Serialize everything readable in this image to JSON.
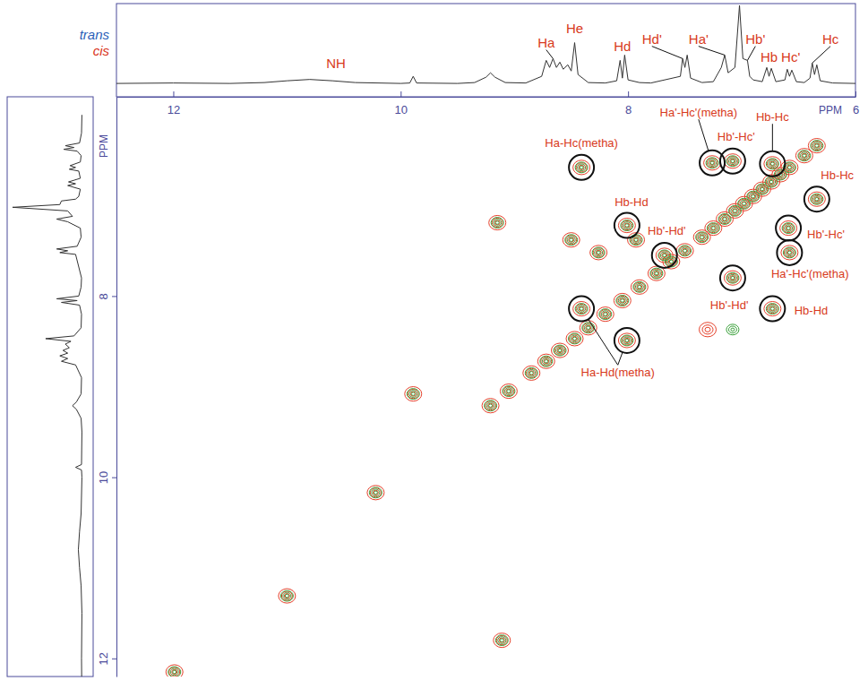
{
  "chart_data": {
    "type": "contour",
    "xlabel": "PPM",
    "ylabel": "PPM",
    "xlim": [
      12.5,
      6
    ],
    "xticks": [
      12,
      10,
      8,
      6
    ],
    "ylim": [
      5.8,
      12.2
    ],
    "yticks": [
      8,
      10,
      12
    ],
    "legend": "upper left",
    "series": [
      {
        "name": "trans",
        "color": "#3aa13a",
        "x": [
          6.34,
          6.45,
          6.58,
          6.66,
          6.74,
          6.82,
          6.9,
          6.98,
          7.06,
          7.15,
          7.25,
          7.35,
          7.5,
          7.62,
          7.75,
          7.9,
          8.05,
          8.2,
          8.35,
          8.47,
          8.6,
          8.72,
          8.85,
          9.05,
          9.21,
          8.41,
          8.01,
          7.68,
          7.26,
          7.08,
          6.73,
          6.34,
          6.59,
          6.58,
          7.08,
          6.73,
          8.41,
          8.01,
          9.15,
          8.5,
          8.26,
          7.93,
          9.89,
          10.22,
          11.0,
          11.99,
          9.11,
          7.08
        ],
        "values": [
          6.34,
          6.45,
          6.58,
          6.66,
          6.74,
          6.82,
          6.9,
          6.98,
          7.06,
          7.15,
          7.25,
          7.35,
          7.5,
          7.62,
          7.75,
          7.9,
          8.05,
          8.2,
          8.35,
          8.47,
          8.6,
          8.72,
          8.85,
          9.05,
          9.21,
          6.58,
          7.22,
          7.55,
          6.53,
          6.51,
          6.54,
          6.93,
          7.25,
          7.52,
          7.8,
          8.14,
          8.14,
          8.49,
          7.19,
          7.38,
          7.52,
          7.38,
          9.08,
          10.17,
          11.31,
          12.15,
          11.8,
          8.37
        ]
      },
      {
        "name": "cis",
        "color": "#e5402a",
        "x": [
          6.34,
          6.45,
          6.58,
          6.66,
          6.74,
          6.82,
          6.9,
          6.98,
          7.06,
          7.15,
          7.25,
          7.35,
          7.5,
          7.62,
          7.75,
          7.9,
          8.05,
          8.2,
          8.35,
          8.47,
          8.6,
          8.72,
          8.85,
          9.05,
          9.21,
          8.41,
          8.01,
          7.68,
          7.26,
          7.08,
          6.73,
          6.34,
          6.59,
          6.58,
          7.08,
          6.73,
          8.41,
          8.01,
          9.15,
          8.5,
          8.26,
          7.93,
          9.89,
          10.22,
          11.0,
          11.99,
          9.11,
          7.3
        ],
        "values": [
          6.34,
          6.45,
          6.58,
          6.66,
          6.74,
          6.82,
          6.9,
          6.98,
          7.06,
          7.15,
          7.25,
          7.35,
          7.5,
          7.62,
          7.75,
          7.9,
          8.05,
          8.2,
          8.35,
          8.47,
          8.6,
          8.72,
          8.85,
          9.05,
          9.21,
          6.58,
          7.22,
          7.55,
          6.53,
          6.51,
          6.54,
          6.93,
          7.25,
          7.52,
          7.8,
          8.14,
          8.14,
          8.49,
          7.19,
          7.38,
          7.52,
          7.38,
          9.08,
          10.17,
          11.31,
          12.15,
          11.8,
          8.37
        ]
      }
    ],
    "annotations": [
      {
        "text": "Ha-Hc(metha)",
        "xy": [
          [
            8.41,
            6.58
          ]
        ],
        "xytext": [
          8.41,
          6.31
        ]
      },
      {
        "text": "Hb-Hd",
        "xy": [
          [
            8.01,
            7.22
          ]
        ],
        "xytext": [
          7.97,
          6.96
        ]
      },
      {
        "text": "Hb'-Hd'",
        "xy": [
          [
            7.68,
            7.55
          ]
        ],
        "xytext": [
          7.66,
          7.28
        ]
      },
      {
        "text": "Ha'-Hc'(metha)",
        "xy": [
          [
            7.26,
            6.53
          ]
        ],
        "xytext": [
          7.38,
          5.97
        ]
      },
      {
        "text": "Hb'-Hc'",
        "xy": [
          [
            7.08,
            6.51
          ]
        ],
        "xytext": [
          7.05,
          6.24
        ]
      },
      {
        "text": "Hb-Hc",
        "xy": [
          [
            6.73,
            6.54
          ]
        ],
        "xytext": [
          6.73,
          6.02
        ]
      },
      {
        "text": "Hb-Hc",
        "xy": [
          [
            6.34,
            6.93
          ]
        ],
        "xytext": [
          6.16,
          6.67
        ]
      },
      {
        "text": "Hb'-Hc'",
        "xy": [
          [
            6.59,
            7.25
          ]
        ],
        "xytext": [
          6.26,
          7.32
        ]
      },
      {
        "text": "Ha'-Hc'(metha)",
        "xy": [
          [
            6.58,
            7.52
          ]
        ],
        "xytext": [
          6.4,
          7.75
        ]
      },
      {
        "text": "Hb'-Hd'",
        "xy": [
          [
            7.08,
            7.8
          ]
        ],
        "xytext": [
          7.11,
          8.1
        ]
      },
      {
        "text": "Hb-Hd",
        "xy": [
          [
            6.73,
            8.14
          ]
        ],
        "xytext": [
          6.39,
          8.16
        ]
      },
      {
        "text": "Ha-Hd(metha)",
        "xy": [
          [
            8.41,
            8.14
          ],
          [
            8.01,
            8.49
          ]
        ],
        "xytext": [
          8.09,
          8.84
        ]
      }
    ],
    "spectrum": {
      "color": "#333333",
      "ylim": [
        0,
        100
      ],
      "x": [
        12.5,
        12.0,
        11.5,
        11.2,
        11.0,
        10.8,
        10.6,
        10.4,
        10.0,
        9.92,
        9.89,
        9.86,
        9.5,
        9.35,
        9.25,
        9.21,
        9.17,
        9.08,
        8.9,
        8.76,
        8.72,
        8.69,
        8.66,
        8.63,
        8.6,
        8.57,
        8.53,
        8.5,
        8.47,
        8.44,
        8.35,
        8.2,
        8.1,
        8.07,
        8.05,
        8.03,
        8.0,
        7.9,
        7.8,
        7.54,
        7.52,
        7.5,
        7.48,
        7.45,
        7.35,
        7.25,
        7.18,
        7.15,
        7.12,
        7.06,
        7.02,
        6.99,
        6.95,
        6.93,
        6.9,
        6.82,
        6.78,
        6.76,
        6.74,
        6.7,
        6.62,
        6.6,
        6.58,
        6.56,
        6.52,
        6.45,
        6.4,
        6.38,
        6.36,
        6.34,
        6.31,
        6.2,
        6.0
      ],
      "values": [
        12,
        12.5,
        12,
        13,
        15,
        16.5,
        15,
        13,
        12,
        12.5,
        20,
        12.5,
        12,
        13,
        19,
        24,
        19,
        13,
        12.5,
        20,
        38,
        30,
        40,
        30,
        36,
        28,
        33,
        26,
        58,
        22,
        13,
        12.5,
        15,
        38,
        18,
        44,
        16,
        13,
        12.5,
        20,
        40,
        30,
        44,
        18,
        13,
        14,
        30,
        44,
        24,
        30,
        100,
        40,
        38,
        20,
        16,
        14,
        30,
        20,
        29,
        14,
        16,
        28,
        20,
        27,
        14,
        13,
        18,
        35,
        22,
        33,
        15,
        12.5,
        12
      ]
    },
    "peak_labels": [
      {
        "text": "NH",
        "xytext": [
          10.57,
          35
        ]
      },
      {
        "text": "Ha",
        "xy": [
          8.66,
          40
        ],
        "xytext": [
          8.72,
          58
        ]
      },
      {
        "text": "He",
        "xytext": [
          8.47,
          74
        ]
      },
      {
        "text": "Hd",
        "xytext": [
          8.05,
          54
        ]
      },
      {
        "text": "Hd'",
        "xy": [
          7.52,
          40
        ],
        "xytext": [
          7.79,
          62
        ]
      },
      {
        "text": "Ha'",
        "xy": [
          7.15,
          44
        ],
        "xytext": [
          7.38,
          62
        ]
      },
      {
        "text": "Hb'",
        "xy": [
          6.95,
          38
        ],
        "xytext": [
          6.88,
          62
        ]
      },
      {
        "text": "Hb",
        "xytext": [
          6.76,
          42
        ]
      },
      {
        "text": "Hc'",
        "xytext": [
          6.57,
          42
        ]
      },
      {
        "text": "Hc",
        "xy": [
          6.38,
          35
        ],
        "xytext": [
          6.22,
          62
        ]
      }
    ]
  }
}
